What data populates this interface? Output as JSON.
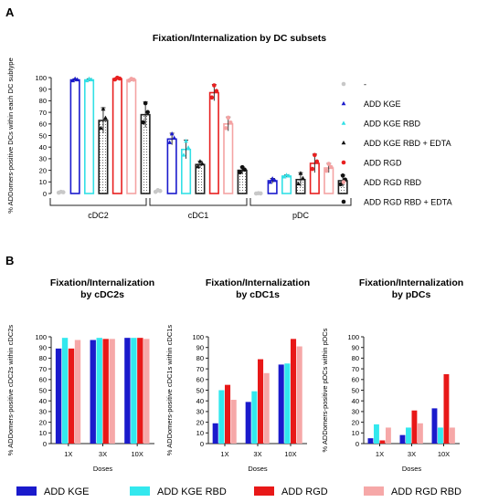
{
  "panel_a_label": "A",
  "panel_b_label": "B",
  "chart_data": [
    {
      "type": "bar",
      "title": "Fixation/Internalization by DC subsets",
      "ylabel": "% ADDomers-positive DCs within each DC subtype",
      "ylim": [
        0,
        100
      ],
      "yticks": [
        0,
        10,
        20,
        30,
        40,
        50,
        60,
        70,
        80,
        90,
        100
      ],
      "categories": [
        "cDC2",
        "cDC1",
        "pDC"
      ],
      "series": [
        {
          "name": "-",
          "color": "#c8c8c8",
          "fill": "none",
          "marker": "circle",
          "values": [
            1,
            2,
            0
          ],
          "errors": [
            0.5,
            1,
            0.3
          ]
        },
        {
          "name": "ADD KGE",
          "color": "#1a1acc",
          "fill": "hollow",
          "marker": "triangle",
          "values": [
            98,
            47,
            11
          ],
          "errors": [
            1,
            5,
            2
          ]
        },
        {
          "name": "ADD KGE RBD",
          "color": "#33e0e6",
          "fill": "hollow",
          "marker": "triangle",
          "values": [
            98,
            38,
            15
          ],
          "errors": [
            1,
            8,
            1
          ]
        },
        {
          "name": "ADD KGE RBD + EDTA",
          "color": "#222222",
          "fill": "dotted",
          "marker": "triangle",
          "values": [
            63,
            25,
            12
          ],
          "errors": [
            11,
            3,
            6
          ]
        },
        {
          "name": "ADD RGD",
          "color": "#e82020",
          "fill": "hollow",
          "marker": "circle",
          "values": [
            99,
            87,
            26
          ],
          "errors": [
            1,
            7,
            8
          ]
        },
        {
          "name": "ADD RGD RBD",
          "color": "#f4a3a3",
          "fill": "hollow",
          "marker": "circle",
          "values": [
            98,
            60,
            22
          ],
          "errors": [
            1,
            6,
            4
          ]
        },
        {
          "name": "ADD RGD RBD + EDTA",
          "color": "#222222",
          "fill": "dotted",
          "marker": "circle",
          "values": [
            68,
            20,
            11
          ],
          "errors": [
            11,
            3,
            5
          ]
        }
      ]
    },
    {
      "type": "bar",
      "title": "Fixation/Internalization by cDC2s",
      "title_lines": [
        "Fixation/Internalization",
        "by cDC2s"
      ],
      "ylabel": "% ADDomers-positive cDC2s within cDC2s",
      "xlabel": "Doses",
      "ylim": [
        0,
        100
      ],
      "yticks": [
        0,
        10,
        20,
        30,
        40,
        50,
        60,
        70,
        80,
        90,
        100
      ],
      "categories": [
        "1X",
        "3X",
        "10X"
      ],
      "series": [
        {
          "name": "ADD KGE",
          "values": [
            89,
            97,
            99
          ]
        },
        {
          "name": "ADD KGE RBD",
          "values": [
            99,
            99,
            99
          ]
        },
        {
          "name": "ADD RGD",
          "values": [
            89,
            98,
            99
          ]
        },
        {
          "name": "ADD RGD RBD",
          "values": [
            97,
            98,
            98
          ]
        }
      ]
    },
    {
      "type": "bar",
      "title": "Fixation/Internalization by cDC1s",
      "title_lines": [
        "Fixation/Internalization",
        "by cDC1s"
      ],
      "ylabel": "% ADDomers-positive cDC1s within cDC1s",
      "xlabel": "Doses",
      "ylim": [
        0,
        100
      ],
      "yticks": [
        0,
        10,
        20,
        30,
        40,
        50,
        60,
        70,
        80,
        90,
        100
      ],
      "categories": [
        "1X",
        "3X",
        "10X"
      ],
      "series": [
        {
          "name": "ADD KGE",
          "values": [
            19,
            39,
            74
          ]
        },
        {
          "name": "ADD KGE RBD",
          "values": [
            50,
            49,
            75
          ]
        },
        {
          "name": "ADD RGD",
          "values": [
            55,
            79,
            98
          ]
        },
        {
          "name": "ADD RGD RBD",
          "values": [
            41,
            66,
            91
          ]
        }
      ]
    },
    {
      "type": "bar",
      "title": "Fixation/Internalization by pDCs",
      "title_lines": [
        "Fixation/Internalization",
        "by pDCs"
      ],
      "ylabel": "% ADDomers-positive pDCs within pDCs",
      "xlabel": "Doses",
      "ylim": [
        0,
        100
      ],
      "yticks": [
        0,
        10,
        20,
        30,
        40,
        50,
        60,
        70,
        80,
        90,
        100
      ],
      "categories": [
        "1X",
        "3X",
        "10X"
      ],
      "series": [
        {
          "name": "ADD KGE",
          "values": [
            5,
            8,
            33
          ]
        },
        {
          "name": "ADD KGE RBD",
          "values": [
            18,
            15,
            15
          ]
        },
        {
          "name": "ADD RGD",
          "values": [
            3,
            31,
            65
          ]
        },
        {
          "name": "ADD RGD RBD",
          "values": [
            15,
            19,
            15
          ]
        }
      ]
    }
  ],
  "b_legend": [
    {
      "name": "ADD KGE",
      "color": "#1a1acc"
    },
    {
      "name": "ADD KGE RBD",
      "color": "#33e8ee"
    },
    {
      "name": "ADD RGD",
      "color": "#e81818"
    },
    {
      "name": "ADD RGD RBD",
      "color": "#f6a8a8"
    }
  ]
}
